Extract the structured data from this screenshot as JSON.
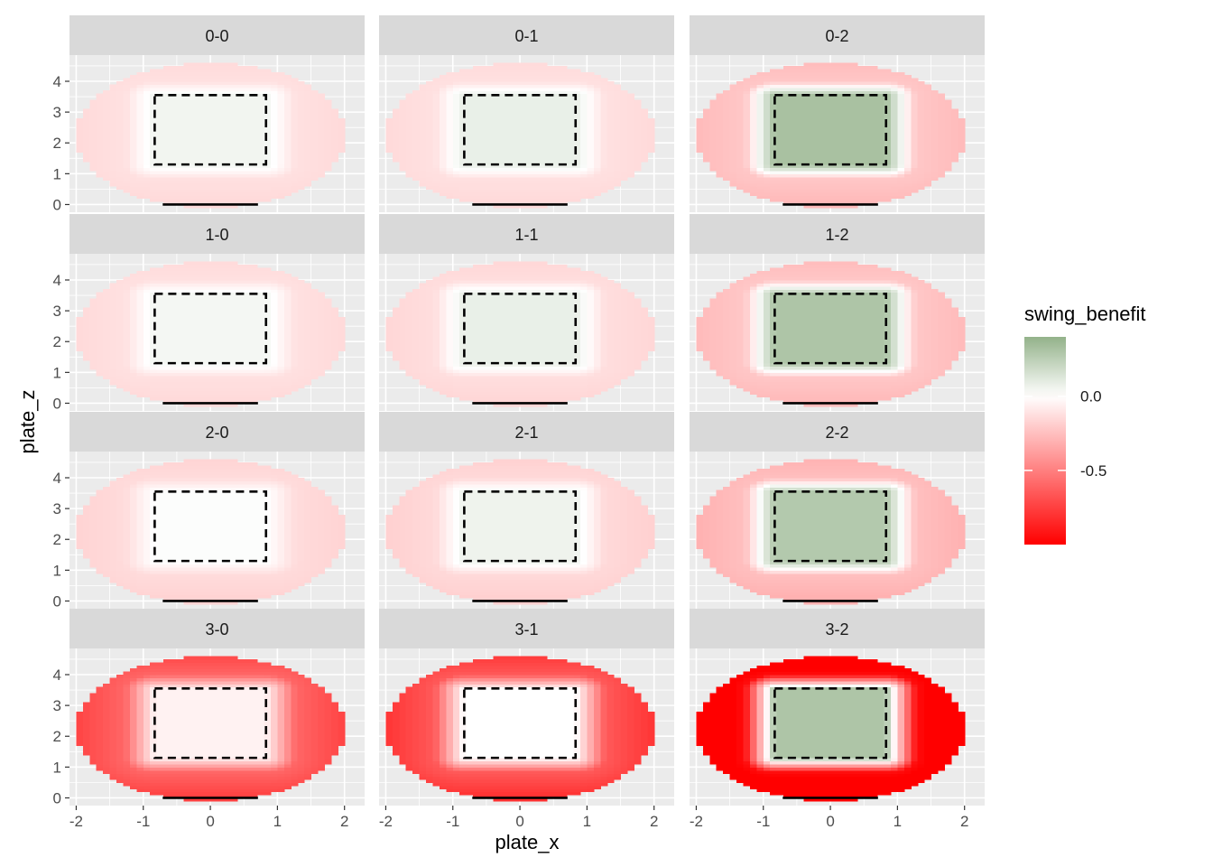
{
  "chart_data": {
    "type": "heatmap",
    "xlabel": "plate_x",
    "ylabel": "plate_z",
    "xlim": [
      -2.1,
      2.3
    ],
    "ylim": [
      -0.25,
      4.85
    ],
    "x_ticks": [
      -2,
      -1,
      0,
      1,
      2
    ],
    "x_tick_labels": [
      "-2",
      "-1",
      "0",
      "1",
      "2"
    ],
    "y_ticks": [
      0,
      1,
      2,
      3,
      4
    ],
    "y_tick_labels": [
      "0",
      "1",
      "2",
      "3",
      "4"
    ],
    "grid": true,
    "legend": {
      "title": "swing_benefit",
      "position": "right",
      "range": [
        -1.0,
        0.4
      ],
      "tick_values": [
        0.0,
        -0.5
      ],
      "tick_labels": [
        "0.0",
        "-0.5"
      ],
      "colors": {
        "low": "#ff0000",
        "mid": "#ffffff",
        "high": "#93b28a"
      }
    },
    "strike_zone": {
      "x": [
        -0.83,
        0.83
      ],
      "z": [
        1.3,
        3.55
      ]
    },
    "home_plate": {
      "x": [
        -0.71,
        0.71
      ],
      "z": 0
    },
    "panels": [
      {
        "label": "0-0",
        "inside_value": 0.05,
        "outside_value": -0.12
      },
      {
        "label": "0-1",
        "inside_value": 0.08,
        "outside_value": -0.12
      },
      {
        "label": "0-2",
        "inside_value": 0.32,
        "outside_value": -0.22
      },
      {
        "label": "1-0",
        "inside_value": 0.04,
        "outside_value": -0.12
      },
      {
        "label": "1-1",
        "inside_value": 0.08,
        "outside_value": -0.13
      },
      {
        "label": "1-2",
        "inside_value": 0.3,
        "outside_value": -0.22
      },
      {
        "label": "2-0",
        "inside_value": 0.01,
        "outside_value": -0.14
      },
      {
        "label": "2-1",
        "inside_value": 0.06,
        "outside_value": -0.15
      },
      {
        "label": "2-2",
        "inside_value": 0.28,
        "outside_value": -0.25
      },
      {
        "label": "3-0",
        "inside_value": -0.05,
        "outside_value": -0.6
      },
      {
        "label": "3-1",
        "inside_value": 0.0,
        "outside_value": -0.65
      },
      {
        "label": "3-2",
        "inside_value": 0.3,
        "outside_value": -0.95
      }
    ]
  }
}
